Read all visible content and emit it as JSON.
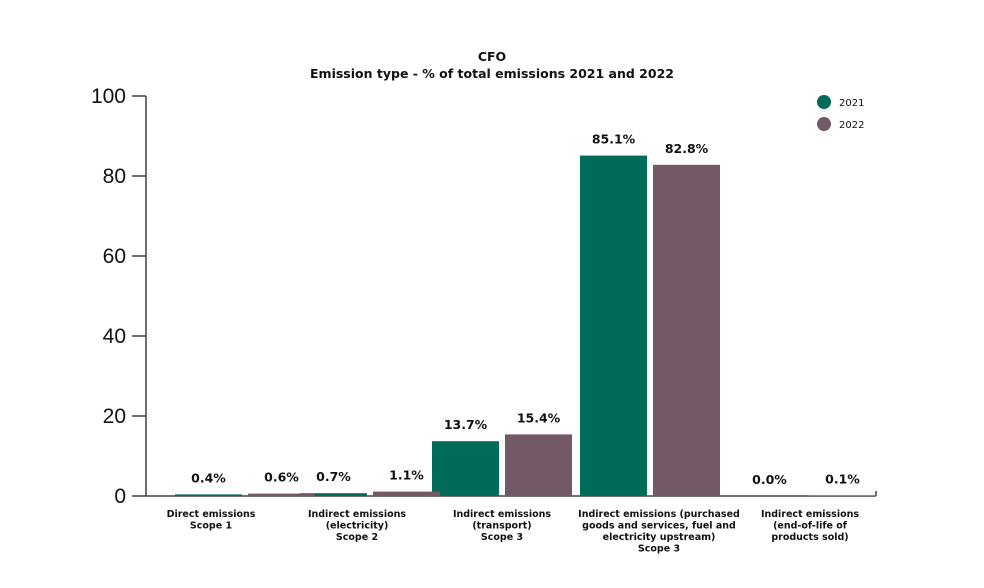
{
  "chart_data": {
    "type": "bar",
    "title": "CFO",
    "subtitle": "Emission type - % of total emissions 2021 and 2022",
    "xlabel": "",
    "ylabel": "",
    "ylim": [
      0,
      100
    ],
    "yticks": [
      0,
      20,
      40,
      60,
      80,
      100
    ],
    "grid": false,
    "legend_position": "top-right",
    "categories": [
      [
        "Direct emissions",
        "Scope 1"
      ],
      [
        "Indirect emissions",
        "(electricity)",
        "Scope 2"
      ],
      [
        "Indirect emissions",
        "(transport)",
        "Scope 3"
      ],
      [
        "Indirect emissions (purchased",
        "goods and services, fuel and",
        "electricity upstream)",
        "Scope 3"
      ],
      [
        "Indirect emissions",
        "(end-of-life of",
        "products sold)"
      ]
    ],
    "series": [
      {
        "name": "2021",
        "color": "#006b58",
        "values": [
          0.4,
          0.7,
          13.7,
          85.1,
          0.0
        ],
        "labels": [
          "0.4%",
          "0.7%",
          "13.7%",
          "85.1%",
          "0.0%"
        ]
      },
      {
        "name": "2022",
        "color": "#735866",
        "values": [
          0.6,
          1.1,
          15.4,
          82.8,
          0.1
        ],
        "labels": [
          "0.6%",
          "1.1%",
          "15.4%",
          "82.8%",
          "0.1%"
        ]
      }
    ]
  }
}
